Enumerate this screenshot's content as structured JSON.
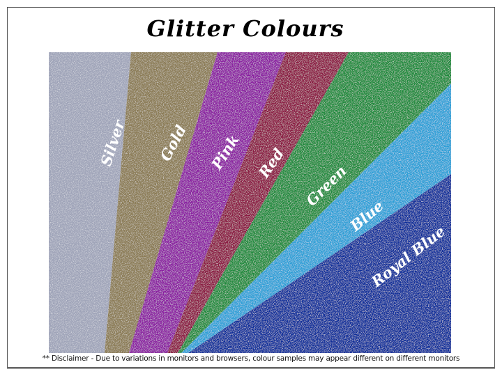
{
  "title": "Glitter Colours",
  "swatches": [
    {
      "label": "Silver",
      "color": "#9ea3b8"
    },
    {
      "label": "Gold",
      "color": "#8a7a52"
    },
    {
      "label": "Pink",
      "color": "#8a1fa0"
    },
    {
      "label": "Red",
      "color": "#8a1640"
    },
    {
      "label": "Green",
      "color": "#1f8a3a"
    },
    {
      "label": "Blue",
      "color": "#2a9fd6"
    },
    {
      "label": "Royal Blue",
      "color": "#0d2f9a"
    }
  ],
  "disclaimer": "** Disclaimer - Due to variations in monitors and browsers, colour samples may appear different on different monitors"
}
